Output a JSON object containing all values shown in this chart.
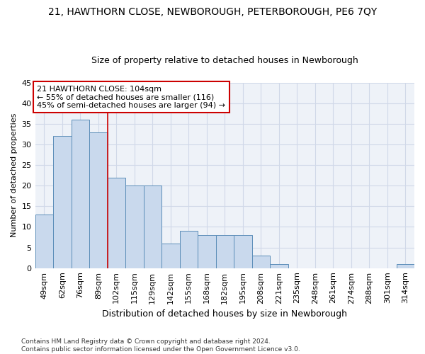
{
  "title": "21, HAWTHORN CLOSE, NEWBOROUGH, PETERBOROUGH, PE6 7QY",
  "subtitle": "Size of property relative to detached houses in Newborough",
  "xlabel": "Distribution of detached houses by size in Newborough",
  "ylabel": "Number of detached properties",
  "categories": [
    "49sqm",
    "62sqm",
    "76sqm",
    "89sqm",
    "102sqm",
    "115sqm",
    "129sqm",
    "142sqm",
    "155sqm",
    "168sqm",
    "182sqm",
    "195sqm",
    "208sqm",
    "221sqm",
    "235sqm",
    "248sqm",
    "261sqm",
    "274sqm",
    "288sqm",
    "301sqm",
    "314sqm"
  ],
  "values": [
    13,
    32,
    36,
    33,
    22,
    20,
    20,
    6,
    9,
    8,
    8,
    8,
    3,
    1,
    0,
    0,
    0,
    0,
    0,
    0,
    1
  ],
  "bar_color": "#c9d9ed",
  "bar_edge_color": "#5b8db8",
  "highlight_index": 4,
  "highlight_line_color": "#cc0000",
  "annotation_text": "21 HAWTHORN CLOSE: 104sqm\n← 55% of detached houses are smaller (116)\n45% of semi-detached houses are larger (94) →",
  "annotation_box_color": "#ffffff",
  "annotation_box_edge_color": "#cc0000",
  "ylim": [
    0,
    45
  ],
  "yticks": [
    0,
    5,
    10,
    15,
    20,
    25,
    30,
    35,
    40,
    45
  ],
  "grid_color": "#d0d8e8",
  "bg_color": "#eef2f8",
  "footer": "Contains HM Land Registry data © Crown copyright and database right 2024.\nContains public sector information licensed under the Open Government Licence v3.0.",
  "title_fontsize": 10,
  "subtitle_fontsize": 9,
  "annotation_fontsize": 8,
  "ylabel_fontsize": 8,
  "xlabel_fontsize": 9,
  "ytick_fontsize": 8,
  "xtick_fontsize": 8
}
